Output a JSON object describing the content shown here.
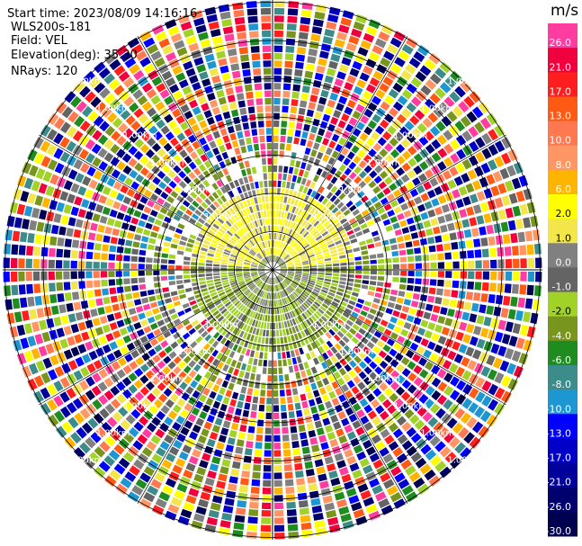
{
  "header": {
    "start_time": "Start time: 2023/08/09 14:16:16",
    "instrument": "WLS200s-181",
    "field": "Field: VEL",
    "elevation": "Elevation(deg): 35.30",
    "nrays": "NRays: 120"
  },
  "colorbar": {
    "unit": "m/s",
    "levels": [
      {
        "label": "26.0",
        "color": "#ff3ca0"
      },
      {
        "label": "21.0",
        "color": "#f0003c"
      },
      {
        "label": "17.0",
        "color": "#ff1e1e"
      },
      {
        "label": "13.0",
        "color": "#ff5a14"
      },
      {
        "label": "10.0",
        "color": "#ff7850"
      },
      {
        "label": "8.0",
        "color": "#ff9664"
      },
      {
        "label": "6.0",
        "color": "#ffb400"
      },
      {
        "label": "2.0",
        "color": "#ffff00"
      },
      {
        "label": "1.0",
        "color": "#f2e64a"
      },
      {
        "label": "0.0",
        "color": "#808080"
      },
      {
        "label": "-1.0",
        "color": "#646464"
      },
      {
        "label": "-2.0",
        "color": "#a0d228"
      },
      {
        "label": "-4.0",
        "color": "#78961e"
      },
      {
        "label": "-6.0",
        "color": "#1e8c1e"
      },
      {
        "label": "-8.0",
        "color": "#3c8c8c"
      },
      {
        "label": "-10.0",
        "color": "#1e96d2"
      },
      {
        "label": "-13.0",
        "color": "#0000ff"
      },
      {
        "label": "-17.0",
        "color": "#0000c8"
      },
      {
        "label": "-21.0",
        "color": "#00009b"
      },
      {
        "label": "-26.0",
        "color": "#00006e"
      },
      {
        "label": "-30.0",
        "color": "#000050"
      }
    ]
  },
  "chart_data": {
    "type": "heatmap",
    "projection": "polar",
    "field": "VEL",
    "units": "m/s",
    "nrays": 120,
    "elevation_deg": 35.3,
    "range_ring_labels": [
      "1.00km",
      "1.00km",
      "1.00km",
      "1.00km",
      "1.00km",
      "1.00km",
      "1.00km",
      "1.00km",
      "1.00km",
      "1.00km",
      "1.00km",
      "1.00km",
      "1.00km",
      "1.00km",
      "1.00km",
      "1.00km",
      "1.00km",
      "1.00km",
      "1.00km",
      "1.00km",
      "1.00km",
      "1.00km",
      "1.00km",
      "1.00km"
    ],
    "description_of_pattern": "near-range returns mostly 0 to 2 m/s (yellow) toward north and -1 to -6 m/s (greens/greys) toward south; beyond ~2 km returns are noise spanning the full color scale"
  }
}
